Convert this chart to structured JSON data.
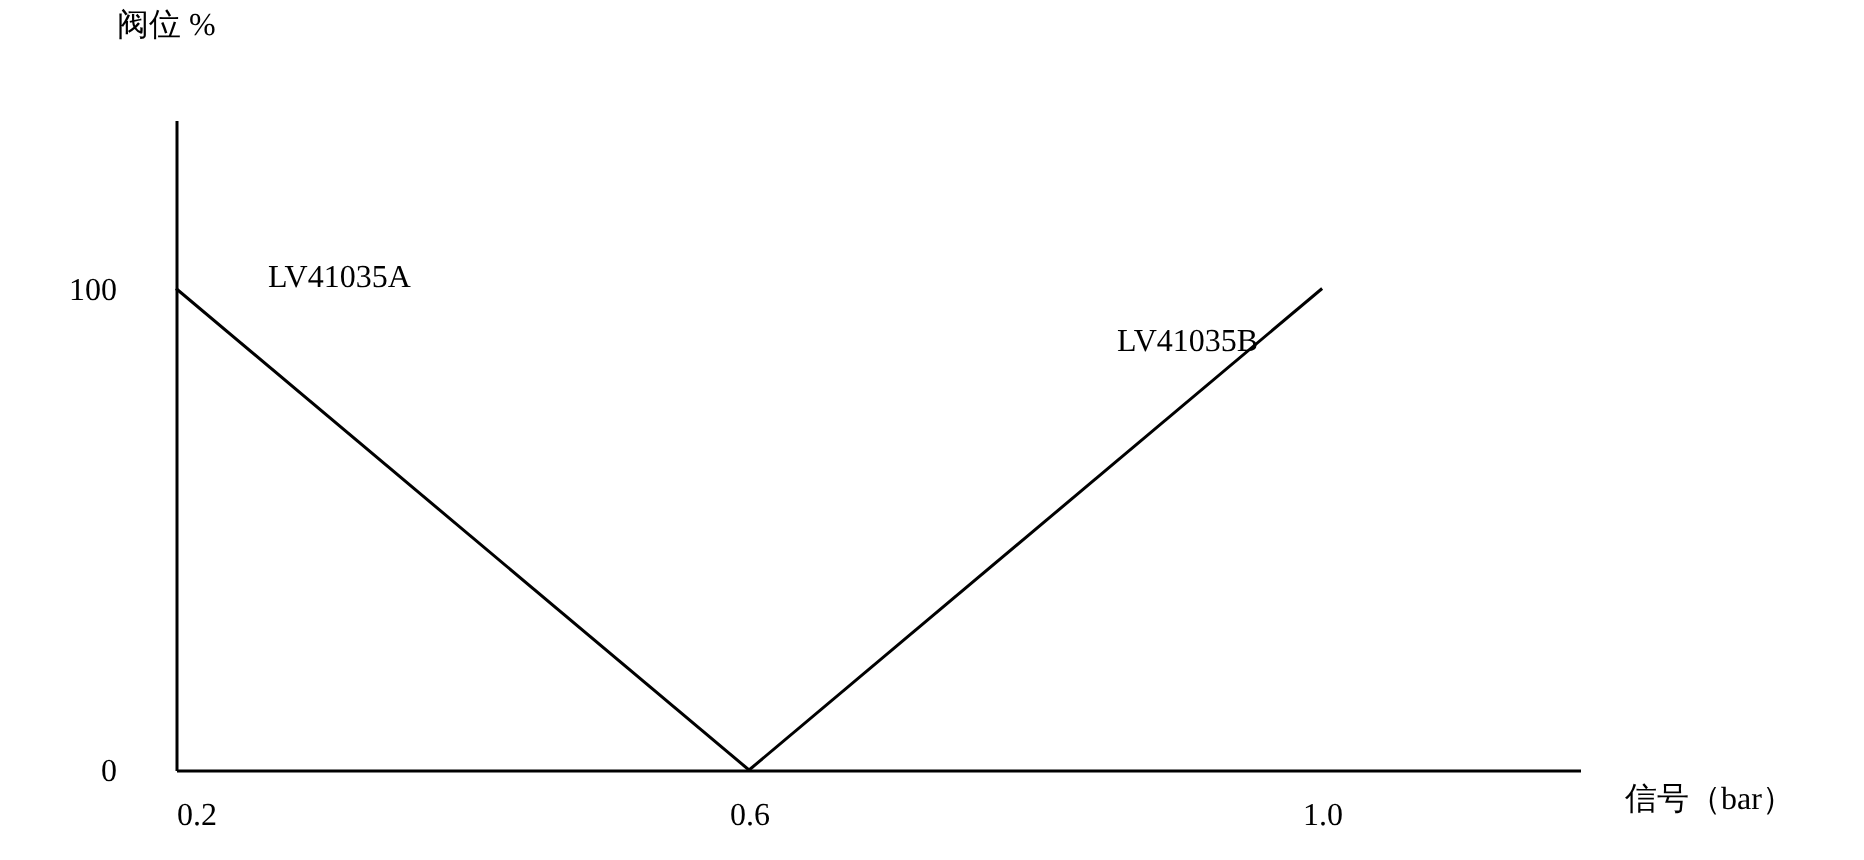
{
  "chart_data": {
    "type": "line",
    "xlabel": "信号（bar）",
    "ylabel": "阀位 %",
    "series": [
      {
        "name": "LV41035A",
        "color": "#000000",
        "x": [
          0.2,
          0.6
        ],
        "values": [
          100,
          0
        ]
      },
      {
        "name": "LV41035B",
        "color": "#000000",
        "x": [
          0.6,
          1.0
        ],
        "values": [
          0,
          100
        ]
      }
    ],
    "xlim": [
      0.2,
      1.18
    ],
    "ylim": [
      0,
      135
    ],
    "xticks": [
      {
        "value": 0.2,
        "label": "0.2"
      },
      {
        "value": 0.6,
        "label": "0.6"
      },
      {
        "value": 1.0,
        "label": "1.0"
      }
    ],
    "yticks": [
      0,
      100
    ],
    "grid": false,
    "legend": false,
    "marker": "none",
    "line_style": "solid"
  }
}
